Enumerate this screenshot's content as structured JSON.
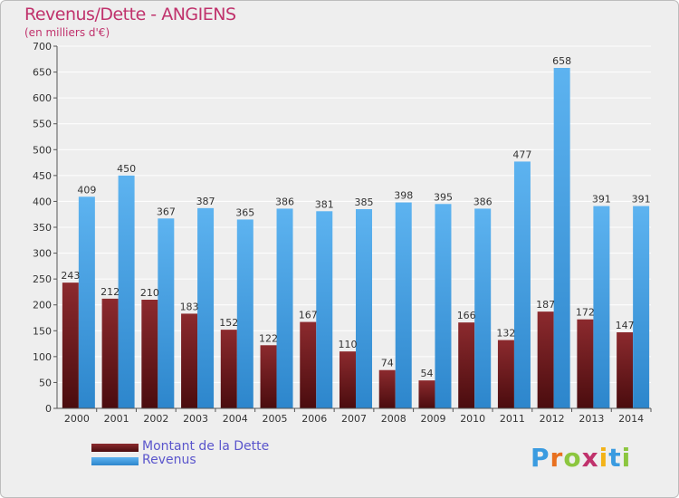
{
  "header": {
    "title": "Revenus/Dette - ANGIENS",
    "subtitle": "(en milliers d'€)"
  },
  "legend": [
    {
      "label": "Montant de la Dette",
      "color": "#7a1e22"
    },
    {
      "label": "Revenus",
      "color": "#4aa3e6"
    }
  ],
  "logo": {
    "text": "Proxiti"
  },
  "chart_data": {
    "type": "bar",
    "title": "Revenus/Dette - ANGIENS",
    "subtitle": "(en milliers d'€)",
    "xlabel": "",
    "ylabel": "",
    "ylim": [
      0,
      700
    ],
    "yticks": [
      0,
      50,
      100,
      150,
      200,
      250,
      300,
      350,
      400,
      450,
      500,
      550,
      600,
      650,
      700
    ],
    "grid": true,
    "legend_position": "bottom-left",
    "categories": [
      "2000",
      "2001",
      "2002",
      "2003",
      "2004",
      "2005",
      "2006",
      "2007",
      "2008",
      "2009",
      "2010",
      "2011",
      "2012",
      "2013",
      "2014"
    ],
    "series": [
      {
        "name": "Montant de la Dette",
        "color": "#7a1e22",
        "values": [
          243,
          212,
          210,
          183,
          152,
          122,
          167,
          110,
          74,
          54,
          166,
          132,
          187,
          172,
          147
        ]
      },
      {
        "name": "Revenus",
        "color": "#4aa3e6",
        "values": [
          409,
          450,
          367,
          387,
          365,
          386,
          381,
          385,
          398,
          395,
          386,
          477,
          658,
          391,
          391
        ]
      }
    ]
  }
}
